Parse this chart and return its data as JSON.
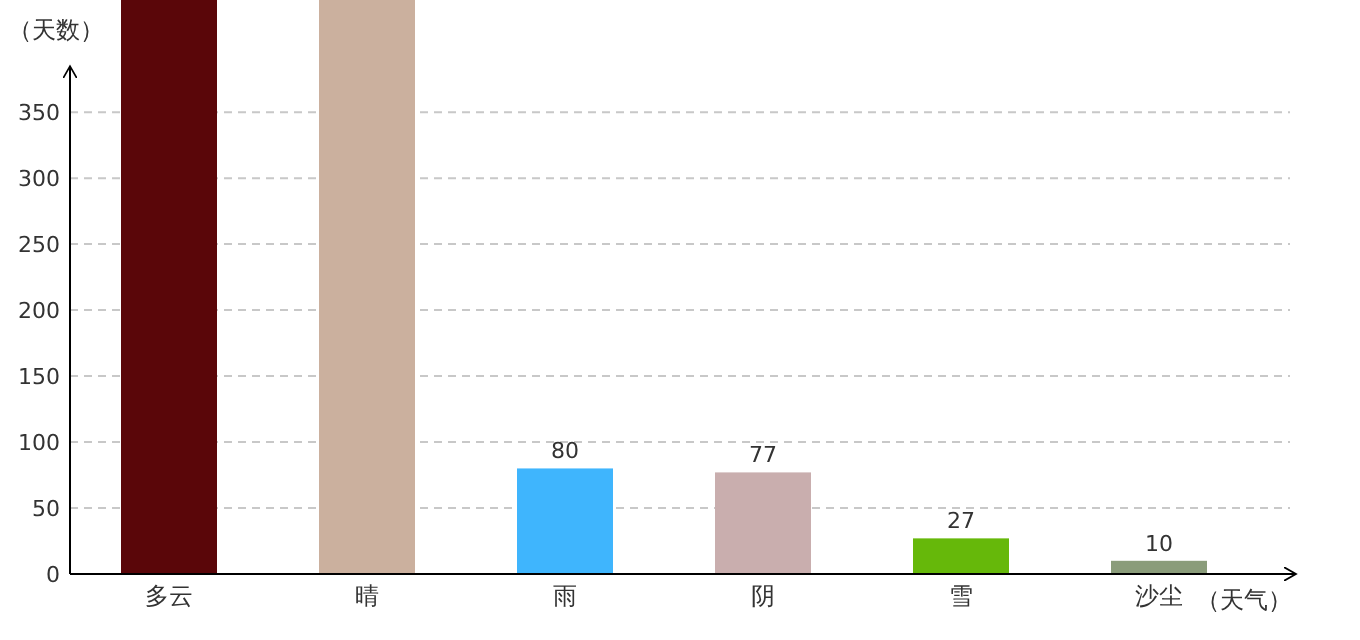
{
  "chart_data": {
    "type": "bar",
    "ylabel": "（天数）",
    "xlabel": "（天气）",
    "categories": [
      "多云",
      "晴",
      "雨",
      "阴",
      "雪",
      "沙尘"
    ],
    "values": [
      435,
      435,
      80,
      77,
      27,
      10
    ],
    "colors": [
      "#5a0609",
      "#cbb09e",
      "#3fb5fd",
      "#c9aeae",
      "#66b80a",
      "#8a9c7a"
    ],
    "value_labels": [
      null,
      null,
      "80",
      "77",
      "27",
      "10"
    ],
    "ylim": [
      0,
      435
    ],
    "yticks": [
      0,
      50,
      100,
      150,
      200,
      250,
      300,
      350
    ],
    "grid": "y"
  }
}
